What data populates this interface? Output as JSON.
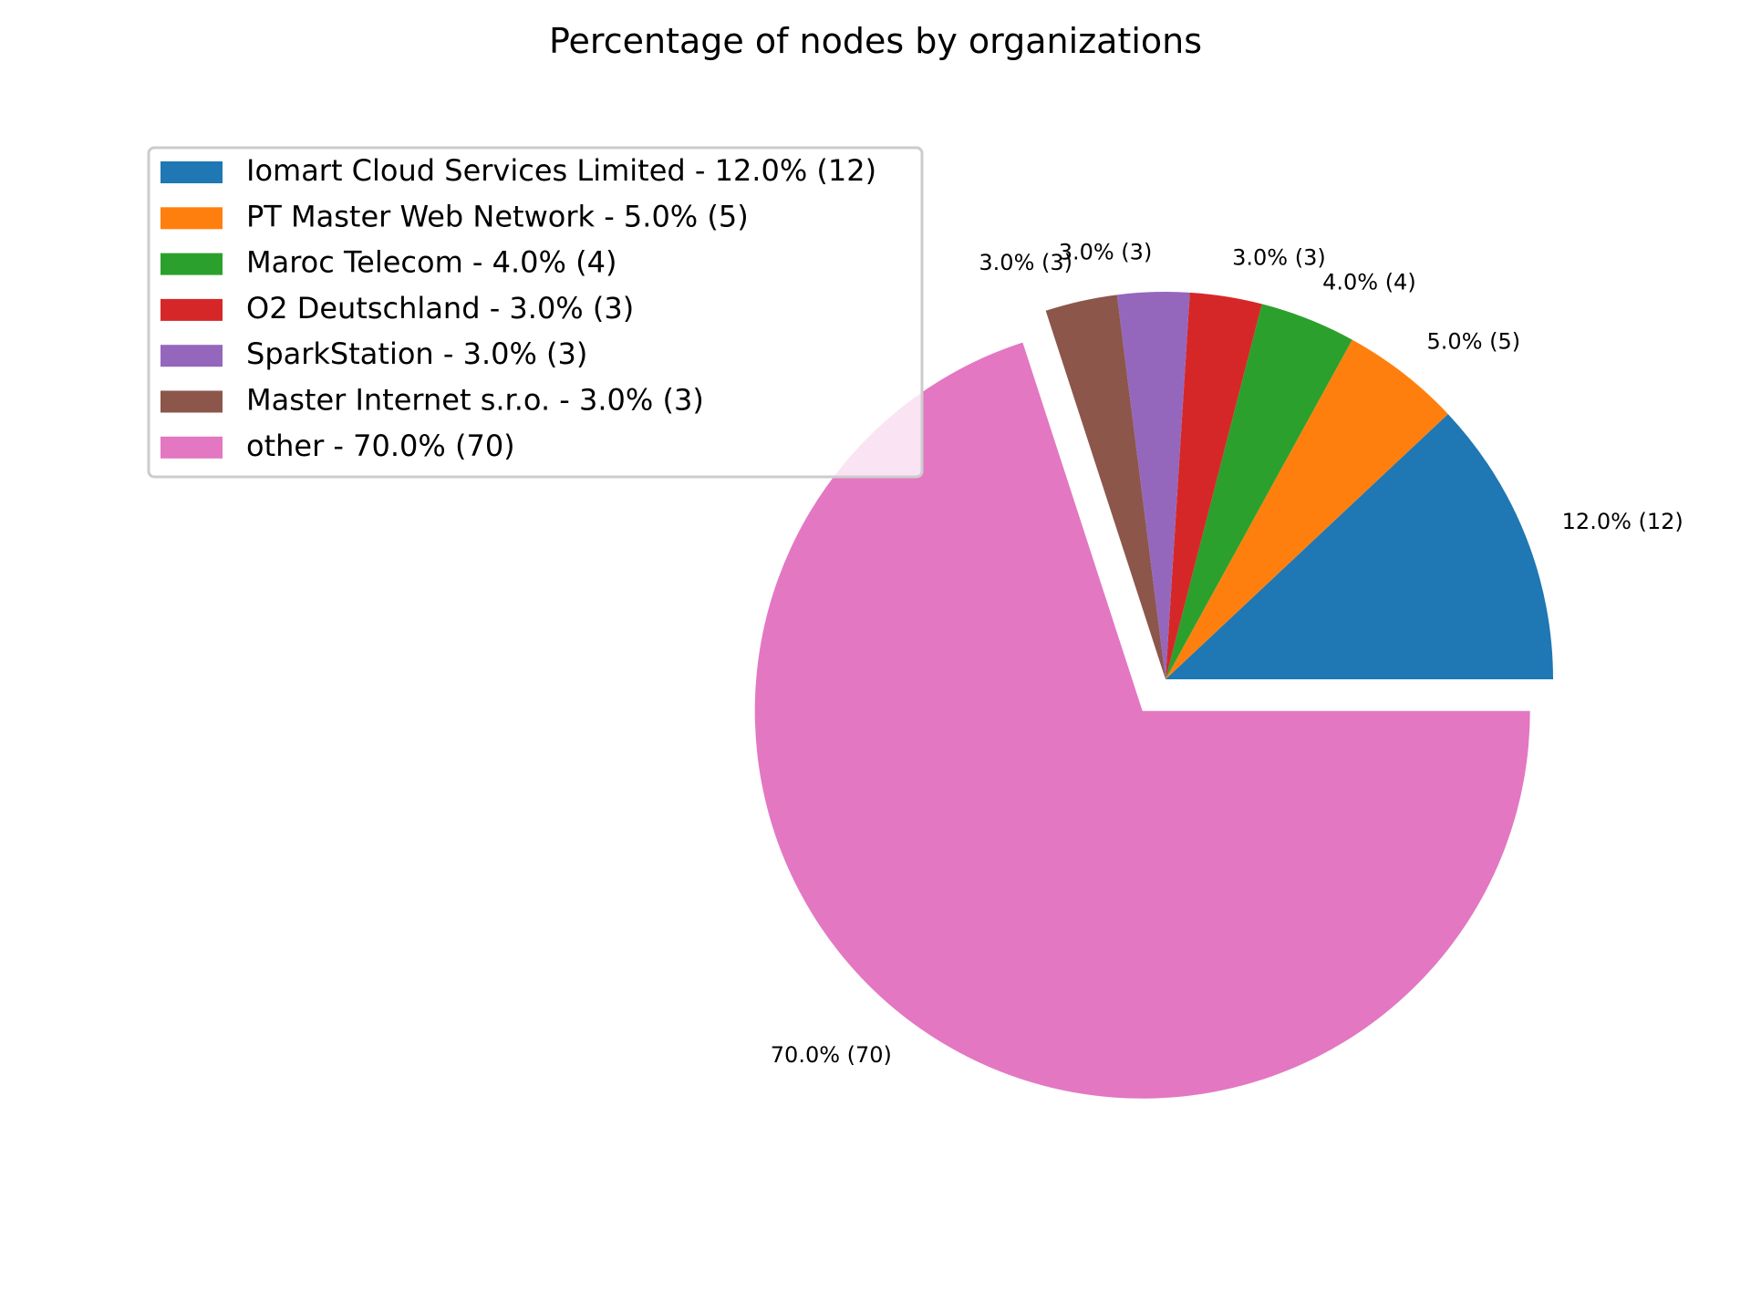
{
  "chart_data": {
    "type": "pie",
    "title": "Percentage of nodes by organizations",
    "slices": [
      {
        "name": "Iomart Cloud Services Limited",
        "value": 12,
        "percent": 12.0,
        "label": "12.0% (12)",
        "legend": "Iomart Cloud Services Limited - 12.0% (12)",
        "color": "#1f77b4",
        "exploded": false
      },
      {
        "name": "PT Master Web Network",
        "value": 5,
        "percent": 5.0,
        "label": "5.0% (5)",
        "legend": "PT Master Web Network - 5.0% (5)",
        "color": "#ff7f0e",
        "exploded": false
      },
      {
        "name": "Maroc Telecom",
        "value": 4,
        "percent": 4.0,
        "label": "4.0% (4)",
        "legend": "Maroc Telecom - 4.0% (4)",
        "color": "#2ca02c",
        "exploded": false
      },
      {
        "name": "O2 Deutschland",
        "value": 3,
        "percent": 3.0,
        "label": "3.0% (3)",
        "legend": "O2 Deutschland - 3.0% (3)",
        "color": "#d62728",
        "exploded": false
      },
      {
        "name": "SparkStation",
        "value": 3,
        "percent": 3.0,
        "label": "3.0% (3)",
        "legend": "SparkStation - 3.0% (3)",
        "color": "#9467bd",
        "exploded": false
      },
      {
        "name": "Master Internet s.r.o.",
        "value": 3,
        "percent": 3.0,
        "label": "3.0% (3)",
        "legend": "Master Internet s.r.o. - 3.0% (3)",
        "color": "#8c564b",
        "exploded": false
      },
      {
        "name": "other",
        "value": 70,
        "percent": 70.0,
        "label": "70.0% (70)",
        "legend": "other - 70.0% (70)",
        "color": "#e377c2",
        "exploded": true
      }
    ],
    "start_angle_deg": 0,
    "direction": "counterclockwise",
    "legend_position": "upper-left"
  }
}
